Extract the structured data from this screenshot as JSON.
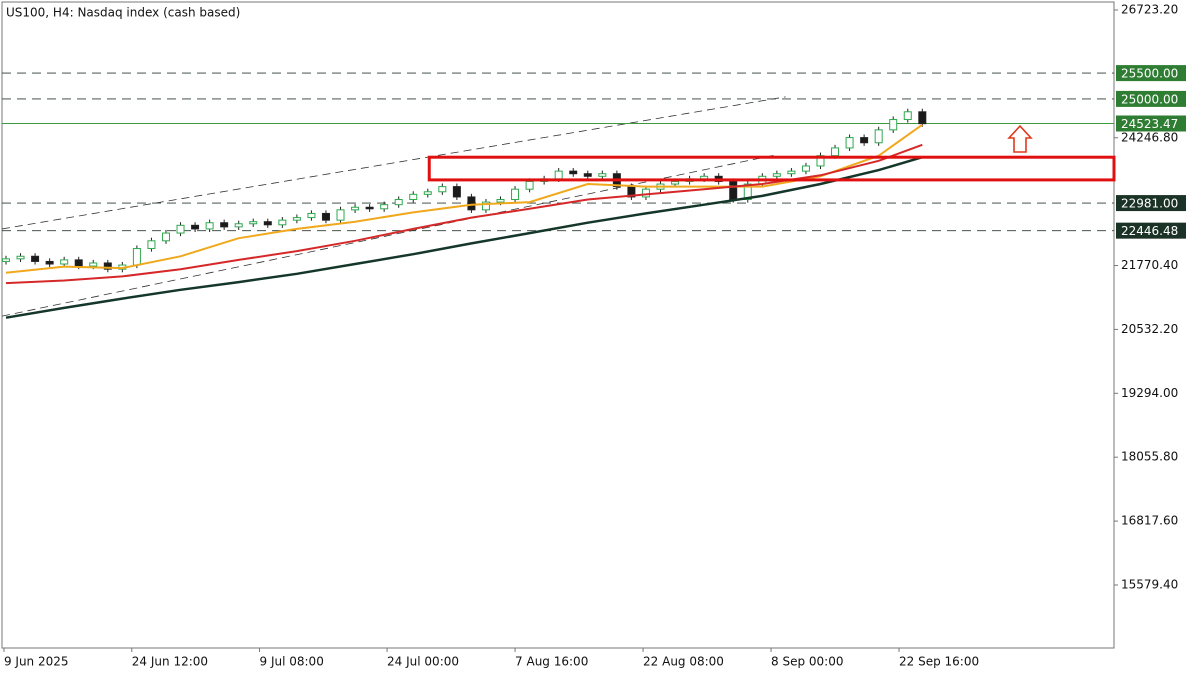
{
  "chart_data": {
    "type": "candlestick",
    "title": "US100, H4:  Nasdaq index (cash based)",
    "xlim": [
      -0.2745,
      76.18
    ],
    "xticks": [
      {
        "value": -0.14,
        "label": "9 Jun 2025"
      },
      {
        "value": 8.65,
        "label": "24 Jun 12:00"
      },
      {
        "value": 17.43,
        "label": "9 Jul 08:00"
      },
      {
        "value": 26.2,
        "label": "24 Jul 00:00"
      },
      {
        "value": 35.0,
        "label": "7 Aug 16:00"
      },
      {
        "value": 43.8,
        "label": "22 Aug 08:00"
      },
      {
        "value": 52.6,
        "label": "8 Sep 00:00"
      },
      {
        "value": 61.4,
        "label": "22 Sep 16:00"
      }
    ],
    "ylim": [
      14358,
      26878
    ],
    "yticks": [
      {
        "value": 26723.2,
        "label": "26723.20"
      },
      {
        "value": 24246.8,
        "label": "24246.80"
      },
      {
        "value": 21770.4,
        "label": "21770.40"
      },
      {
        "value": 20532.2,
        "label": "20532.20"
      },
      {
        "value": 19294,
        "label": "19294.00"
      },
      {
        "value": 18055.8,
        "label": "18055.80"
      },
      {
        "value": 16817.6,
        "label": "16817.60"
      },
      {
        "value": 15579.4,
        "label": "15579.40"
      }
    ],
    "up_color": "#2fa84f",
    "down_color": "#1a1a1a",
    "open": [
      21850,
      21900,
      21950,
      21850,
      21800,
      21880,
      21760,
      21820,
      21700,
      21780,
      22100,
      22250,
      22400,
      22550,
      22480,
      22600,
      22520,
      22580,
      22620,
      22560,
      22650,
      22700,
      22780,
      22650,
      22850,
      22900,
      22870,
      22950,
      23050,
      23150,
      23200,
      23300,
      23100,
      22850,
      23000,
      23050,
      23250,
      23400,
      23450,
      23600,
      23550,
      23500,
      23550,
      23300,
      23100,
      23250,
      23350,
      23400,
      23450,
      23500,
      23400,
      23050,
      23350,
      23500,
      23550,
      23600,
      23700,
      23900,
      24050,
      24250,
      24150,
      24400,
      24600,
      24750
    ],
    "high": [
      21960,
      22010,
      22010,
      21910,
      21940,
      21940,
      21880,
      21880,
      21840,
      22160,
      22310,
      22460,
      22610,
      22610,
      22660,
      22660,
      22640,
      22680,
      22680,
      22710,
      22760,
      22840,
      22840,
      22910,
      22960,
      22960,
      23010,
      23110,
      23210,
      23260,
      23360,
      23360,
      23160,
      23060,
      23110,
      23310,
      23460,
      23510,
      23660,
      23660,
      23610,
      23610,
      23610,
      23360,
      23310,
      23410,
      23460,
      23510,
      23560,
      23560,
      23460,
      23410,
      23560,
      23610,
      23660,
      23760,
      23960,
      24110,
      24310,
      24310,
      24460,
      24660,
      24810,
      24810
    ],
    "low": [
      21790,
      21840,
      21790,
      21740,
      21740,
      21700,
      21700,
      21640,
      21640,
      21720,
      22040,
      22190,
      22340,
      22420,
      22420,
      22460,
      22460,
      22520,
      22500,
      22500,
      22590,
      22640,
      22590,
      22590,
      22790,
      22810,
      22810,
      22890,
      22990,
      23090,
      23140,
      23040,
      22790,
      22790,
      22940,
      22990,
      23190,
      23340,
      23390,
      23490,
      23440,
      23440,
      23240,
      23040,
      23040,
      23190,
      23290,
      23340,
      23390,
      23340,
      22990,
      22990,
      23290,
      23440,
      23490,
      23540,
      23640,
      23840,
      23990,
      24090,
      24090,
      24340,
      24540,
      24460
    ],
    "close": [
      21900,
      21950,
      21850,
      21800,
      21880,
      21760,
      21820,
      21700,
      21780,
      22100,
      22250,
      22400,
      22550,
      22480,
      22600,
      22520,
      22580,
      22620,
      22560,
      22650,
      22700,
      22780,
      22650,
      22850,
      22900,
      22870,
      22950,
      23050,
      23150,
      23200,
      23300,
      23100,
      22850,
      23000,
      23050,
      23250,
      23400,
      23450,
      23600,
      23550,
      23500,
      23550,
      23300,
      23100,
      23250,
      23350,
      23400,
      23450,
      23500,
      23400,
      23050,
      23350,
      23500,
      23550,
      23600,
      23700,
      23900,
      24050,
      24250,
      24150,
      24400,
      24600,
      24750,
      24520
    ],
    "ma_x": [
      0,
      4,
      8,
      12,
      16,
      20,
      24,
      28,
      32,
      36,
      40,
      44,
      48,
      52,
      56,
      60,
      63
    ],
    "moving_averages": [
      {
        "color": "#f0a81c",
        "width": 2,
        "values": [
          21630,
          21750,
          21720,
          21950,
          22300,
          22480,
          22620,
          22800,
          22950,
          23000,
          23350,
          23300,
          23300,
          23300,
          23500,
          23900,
          24500
        ]
      },
      {
        "color": "#d62828",
        "width": 2,
        "values": [
          21430,
          21480,
          21560,
          21700,
          21880,
          22050,
          22250,
          22480,
          22700,
          22870,
          23050,
          23150,
          23250,
          23350,
          23520,
          23800,
          24110
        ]
      },
      {
        "color": "#15372a",
        "width": 2.5,
        "values": [
          20760,
          20950,
          21130,
          21300,
          21450,
          21610,
          21800,
          21990,
          22200,
          22400,
          22600,
          22780,
          22950,
          23120,
          23350,
          23620,
          23870
        ]
      }
    ],
    "trendlines": [
      {
        "x": [
          -0.2745,
          53.6
        ],
        "y": [
          22480,
          25040
        ]
      },
      {
        "x": [
          -0.2745,
          53.0
        ],
        "y": [
          20790,
          23920
        ]
      }
    ],
    "zone": {
      "x": [
        29.1,
        76.18
      ],
      "y": [
        23430,
        23870
      ],
      "color": "#e01010"
    },
    "levels": [
      {
        "value": 25500,
        "label": "25500.00",
        "style": "dashed",
        "label_color": "#2e7d32"
      },
      {
        "value": 25000,
        "label": "25000.00",
        "style": "dashed",
        "label_color": "#2e7d32"
      },
      {
        "value": 24523.47,
        "label": "24523.47",
        "style": "solid",
        "label_color": "#2e7d32"
      },
      {
        "value": 22981,
        "label": "22981.00",
        "style": "dashed",
        "label_color": "#1b3326"
      },
      {
        "value": 22446.48,
        "label": "22446.48",
        "style": "dashed",
        "label_color": "#1b3326"
      }
    ]
  }
}
